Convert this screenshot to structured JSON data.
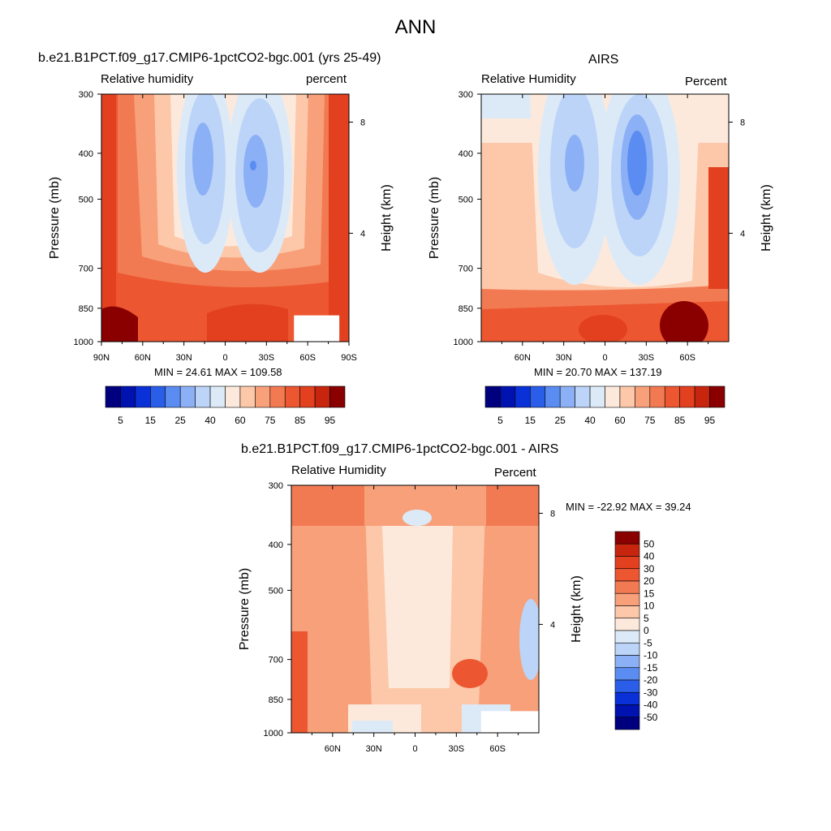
{
  "page": {
    "title": "ANN"
  },
  "colors": {
    "diverging_scale": [
      "#00007f",
      "#0013b0",
      "#0a30d8",
      "#2a5ee8",
      "#5a8cf2",
      "#8cb0f5",
      "#bcd4f8",
      "#dceaf8",
      "#fde9dc",
      "#fcc8a9",
      "#f7a07a",
      "#f27a52",
      "#ec5630",
      "#e2401f",
      "#c8250f",
      "#8a0000"
    ],
    "gap": "#ffffff",
    "frame": "#000000"
  },
  "chart_data": [
    {
      "type": "heatmap",
      "title": "b.e21.B1PCT.f09_g17.CMIP6-1pctCO2-bgc.001 (yrs 25-49)",
      "left_label": "Relative humidity",
      "right_label": "percent",
      "ylabel": "Pressure (mb)",
      "ylabel_right": "Height (km)",
      "x_ticks": [
        "90N",
        "60N",
        "30N",
        "0",
        "30S",
        "60S",
        "90S"
      ],
      "x_tick_lat": [
        90,
        60,
        30,
        0,
        -30,
        -60,
        -90
      ],
      "xlim": [
        90,
        -90
      ],
      "y_ticks": [
        "300",
        "400",
        "500",
        "700",
        "850",
        "1000"
      ],
      "y_tick_p": [
        300,
        400,
        500,
        700,
        850,
        1000
      ],
      "ylim": [
        1000,
        300
      ],
      "y_scale": "log",
      "height_ticks": [
        "8",
        "4"
      ],
      "height_tick_km": [
        8,
        4
      ],
      "stats": "MIN =  24.61  MAX = 109.58",
      "min": 24.61,
      "max": 109.58,
      "missing_region": {
        "lat_from": -50,
        "lat_to": -83,
        "p_from": 880,
        "p_to": 1000
      },
      "colorbar": {
        "orientation": "horizontal",
        "levels": [
          5,
          10,
          15,
          20,
          25,
          30,
          40,
          50,
          60,
          65,
          75,
          80,
          85,
          90,
          95
        ],
        "labels": [
          "5",
          "15",
          "25",
          "40",
          "60",
          "75",
          "85",
          "95"
        ]
      }
    },
    {
      "type": "heatmap",
      "title": "AIRS",
      "left_label": "Relative Humidity",
      "right_label": "Percent",
      "ylabel": "Pressure (mb)",
      "ylabel_right": "Height (km)",
      "x_ticks": [
        "60N",
        "30N",
        "0",
        "30S",
        "60S"
      ],
      "x_tick_lat": [
        60,
        30,
        0,
        -30,
        -60
      ],
      "xlim": [
        90,
        -90
      ],
      "y_ticks": [
        "300",
        "400",
        "500",
        "700",
        "850",
        "1000"
      ],
      "y_tick_p": [
        300,
        400,
        500,
        700,
        850,
        1000
      ],
      "ylim": [
        1000,
        300
      ],
      "y_scale": "log",
      "height_ticks": [
        "8",
        "4"
      ],
      "height_tick_km": [
        8,
        4
      ],
      "stats": "MIN =  20.70  MAX = 137.19",
      "min": 20.7,
      "max": 137.19,
      "colorbar": {
        "orientation": "horizontal",
        "levels": [
          5,
          10,
          15,
          20,
          25,
          30,
          40,
          50,
          60,
          65,
          75,
          80,
          85,
          90,
          95
        ],
        "labels": [
          "5",
          "15",
          "25",
          "40",
          "60",
          "75",
          "85",
          "95"
        ]
      }
    },
    {
      "type": "heatmap",
      "title": "b.e21.B1PCT.f09_g17.CMIP6-1pctCO2-bgc.001 - AIRS",
      "left_label": "Relative Humidity",
      "right_label": "Percent",
      "ylabel": "Pressure (mb)",
      "ylabel_right": "Height (km)",
      "x_ticks": [
        "60N",
        "30N",
        "0",
        "30S",
        "60S"
      ],
      "x_tick_lat": [
        60,
        30,
        0,
        -30,
        -60
      ],
      "xlim": [
        90,
        -90
      ],
      "y_ticks": [
        "300",
        "400",
        "500",
        "700",
        "850",
        "1000"
      ],
      "y_tick_p": [
        300,
        400,
        500,
        700,
        850,
        1000
      ],
      "ylim": [
        1000,
        300
      ],
      "y_scale": "log",
      "height_ticks": [
        "8",
        "4"
      ],
      "height_tick_km": [
        8,
        4
      ],
      "stats": "MIN = -22.92  MAX =  39.24",
      "min": -22.92,
      "max": 39.24,
      "missing_region": {
        "lat_from": -48,
        "lat_to": -90,
        "p_from": 900,
        "p_to": 1000
      },
      "colorbar": {
        "orientation": "vertical",
        "levels": [
          50,
          40,
          30,
          20,
          15,
          10,
          5,
          0,
          -5,
          -10,
          -15,
          -20,
          -30,
          -40,
          -50
        ],
        "labels": [
          "50",
          "40",
          "30",
          "20",
          "15",
          "10",
          "5",
          "0",
          "-5",
          "-10",
          "-15",
          "-20",
          "-30",
          "-40",
          "-50"
        ]
      }
    }
  ]
}
